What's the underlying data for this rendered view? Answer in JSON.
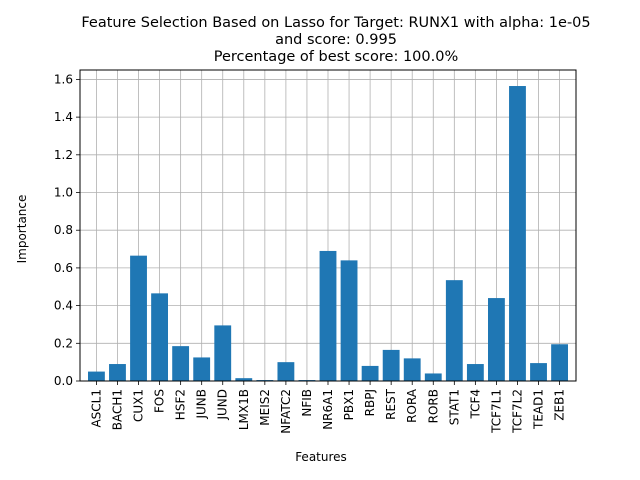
{
  "chart_data": {
    "type": "bar",
    "title_lines": [
      "Feature Selection Based on Lasso for Target: RUNX1 with alpha: 1e-05",
      "and score: 0.995",
      "Percentage of best score: 100.0%"
    ],
    "xlabel": "Features",
    "ylabel": "Importance",
    "ylim": [
      0,
      1.65
    ],
    "yticks": [
      "0.0",
      "0.2",
      "0.4",
      "0.6",
      "0.8",
      "1.0",
      "1.2",
      "1.4",
      "1.6"
    ],
    "grid": true,
    "bar_color": "#1f77b4",
    "categories": [
      "ASCL1",
      "BACH1",
      "CUX1",
      "FOS",
      "HSF2",
      "JUNB",
      "JUND",
      "LMX1B",
      "MEIS2",
      "NFATC2",
      "NFIB",
      "NR6A1",
      "PBX1",
      "RBPJ",
      "REST",
      "RORA",
      "RORB",
      "STAT1",
      "TCF4",
      "TCF7L1",
      "TCF7L2",
      "TEAD1",
      "ZEB1"
    ],
    "values": [
      0.05,
      0.09,
      0.665,
      0.465,
      0.185,
      0.125,
      0.295,
      0.015,
      0.005,
      0.1,
      0.005,
      0.69,
      0.64,
      0.08,
      0.165,
      0.12,
      0.04,
      0.535,
      0.09,
      0.44,
      1.565,
      0.095,
      0.195
    ]
  }
}
